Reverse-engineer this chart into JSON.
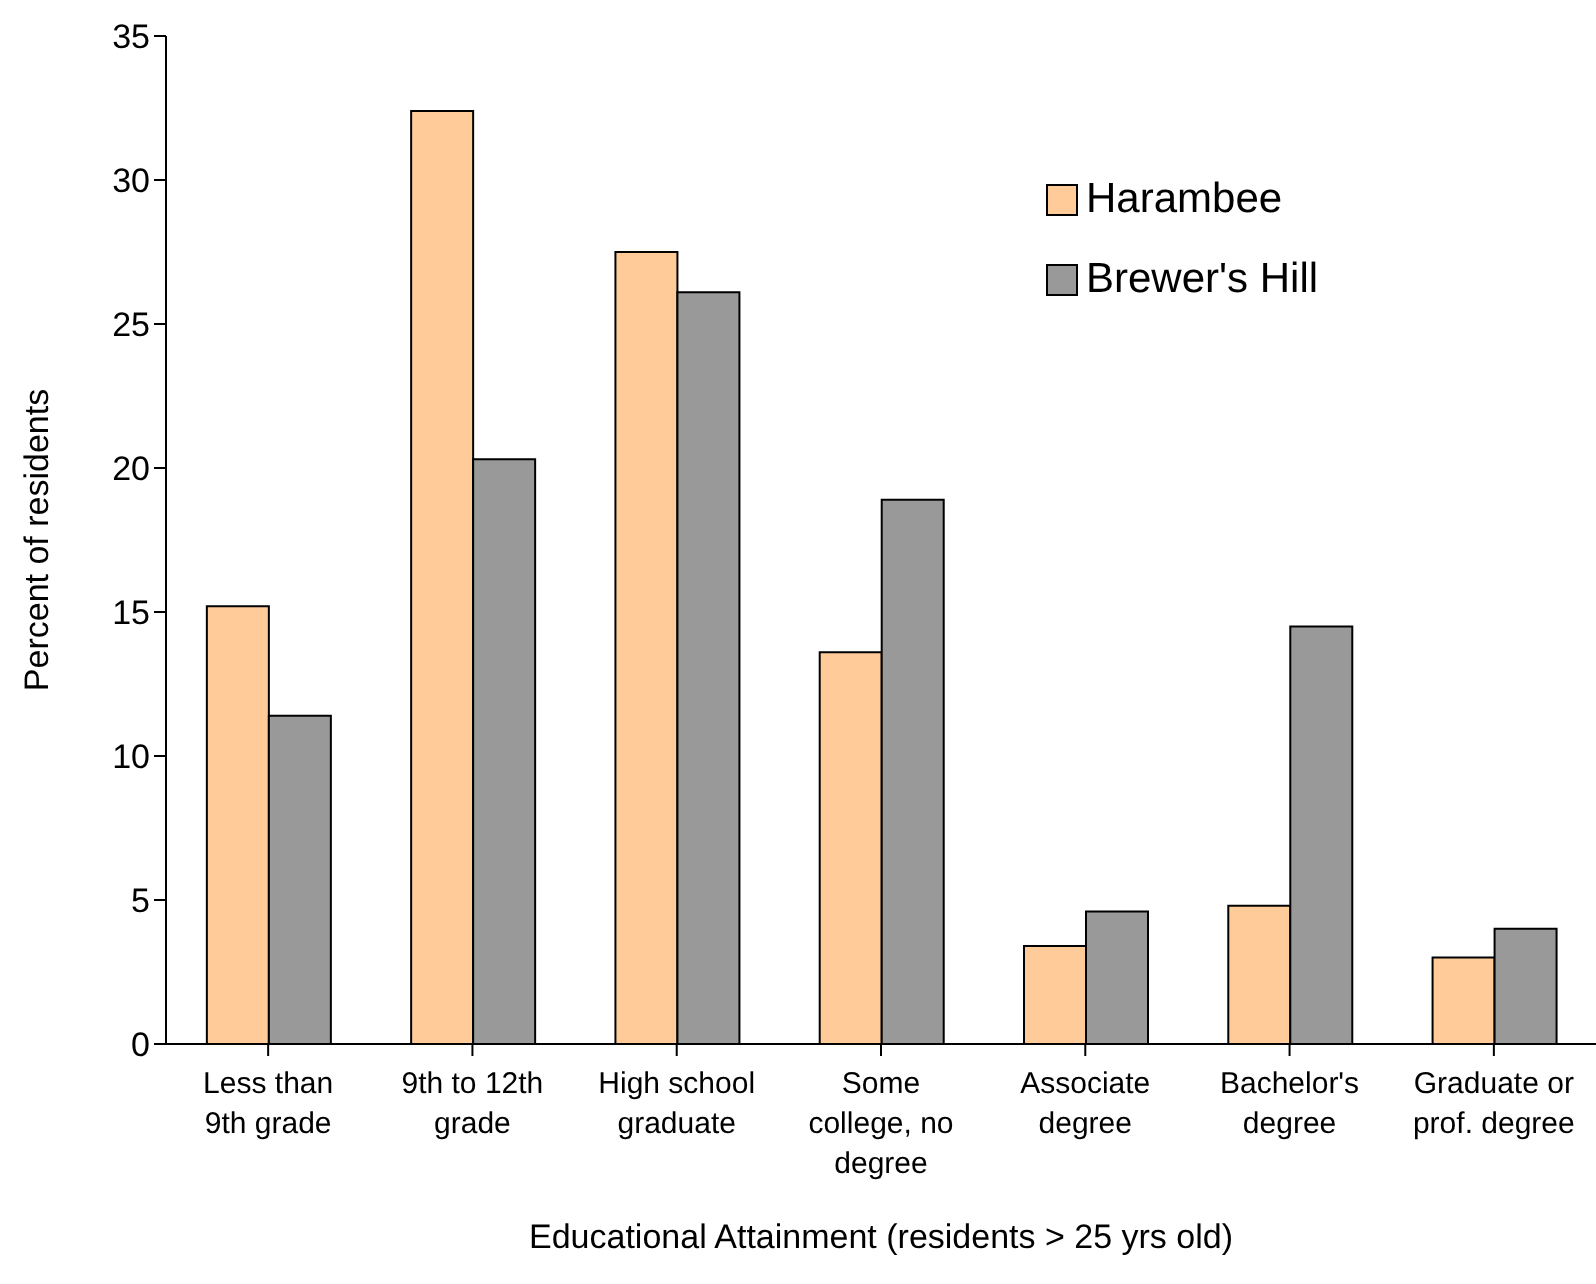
{
  "chart_data": {
    "type": "bar",
    "xlabel": "Educational Attainment (residents > 25 yrs old)",
    "ylabel": "Percent of residents",
    "categories": [
      "Less than 9th grade",
      "9th to 12th grade",
      "High school graduate",
      "Some college, no degree",
      "Associate degree",
      "Bachelor's degree",
      "Graduate or prof. degree"
    ],
    "series": [
      {
        "name": "Harambee",
        "color": "#ffcc99",
        "values": [
          15.2,
          32.4,
          27.5,
          13.6,
          3.4,
          4.8,
          3.0
        ]
      },
      {
        "name": "Brewer's Hill",
        "color": "#999999",
        "values": [
          11.4,
          20.3,
          26.1,
          18.9,
          4.6,
          14.5,
          4.0
        ]
      }
    ],
    "ylim": [
      0,
      35
    ],
    "yticks": [
      0,
      5,
      10,
      15,
      20,
      25,
      30,
      35
    ],
    "grid": false,
    "legend": "top right"
  }
}
